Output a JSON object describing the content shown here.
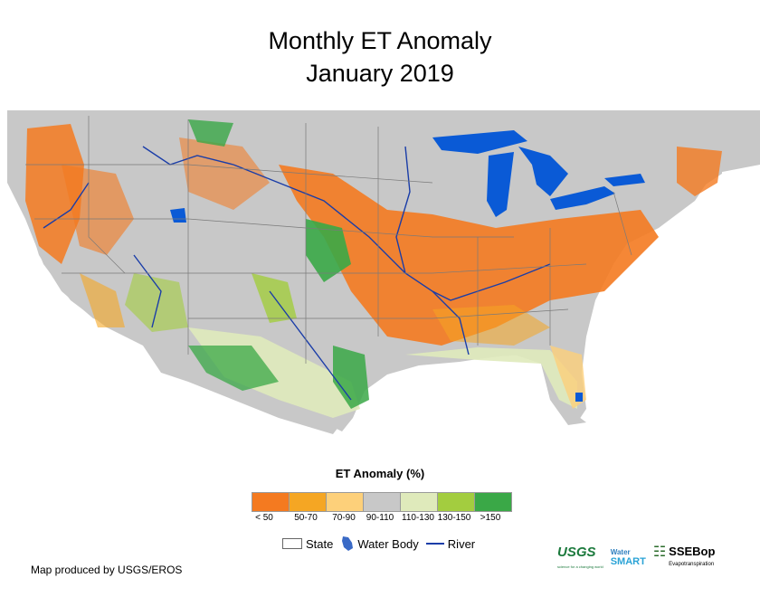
{
  "title": {
    "line1": "Monthly ET Anomaly",
    "line2": "January 2019"
  },
  "map": {
    "name": "Contiguous United States ET anomaly",
    "nodata_color": "#c8c8c8",
    "water_color": "#0a5ad6",
    "river_color": "#1a3da8",
    "background_color": "#ffffff"
  },
  "legend": {
    "title": "ET Anomaly (%)",
    "classes": [
      {
        "label": "< 50",
        "color": "#f47a20"
      },
      {
        "label": "50-70",
        "color": "#f5a623"
      },
      {
        "label": "70-90",
        "color": "#fdd07a"
      },
      {
        "label": "90-110",
        "color": "#c8c8c8"
      },
      {
        "label": "110-130",
        "color": "#dfeabb"
      },
      {
        "label": "130-150",
        "color": "#a3cd3f"
      },
      {
        "label": ">150",
        "color": "#3aa847"
      }
    ]
  },
  "features": {
    "state": "State",
    "water_body": "Water Body",
    "river": "River"
  },
  "credit": "Map produced by USGS/EROS",
  "logos": {
    "usgs": "USGS",
    "usgs_tagline": "science for a changing world",
    "watersmart_top": "Water",
    "watersmart_main": "SMART",
    "ssebop": "SSEBop",
    "ssebop_tagline": "Evapotranspiration"
  }
}
